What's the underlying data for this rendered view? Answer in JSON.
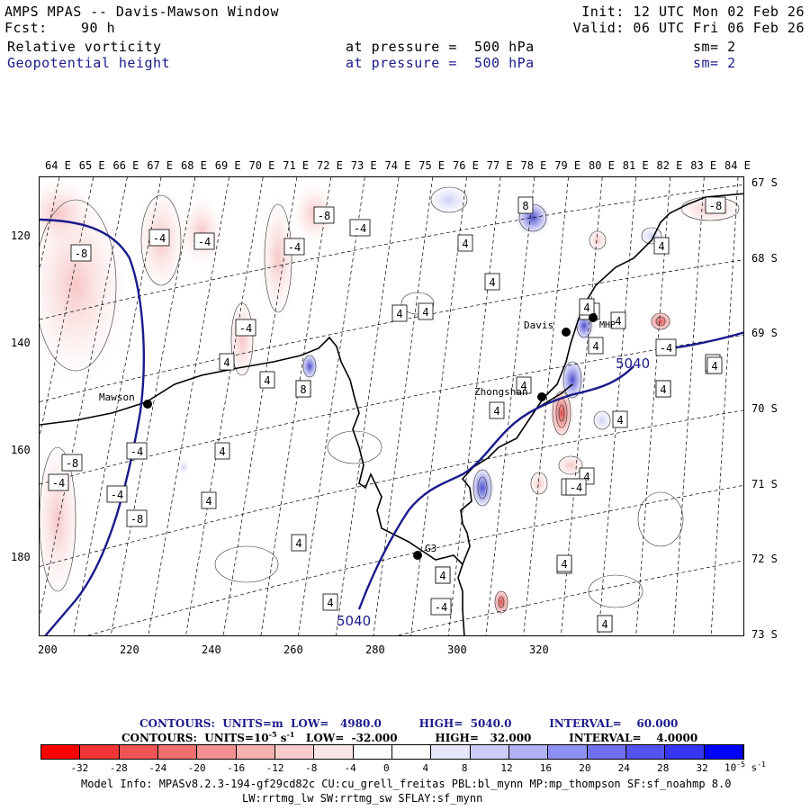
{
  "header": {
    "title": "AMPS MPAS -- Davis-Mawson Window",
    "fcst_label": "Fcst:",
    "fcst_value": "90 h",
    "init": "Init: 12 UTC Mon 02 Feb 26",
    "valid": "Valid: 06 UTC Fri 06 Feb 26",
    "field1_name": "Relative vorticity",
    "field1_level": "at pressure =  500 hPa",
    "field1_sm": "sm= 2",
    "field2_name": "Geopotential height",
    "field2_level": "at pressure =  500 hPa",
    "field2_sm": "sm= 2"
  },
  "map": {
    "top_longitudes": [
      "64 E",
      "65 E",
      "66 E",
      "67 E",
      "68 E",
      "69 E",
      "70 E",
      "71 E",
      "72 E",
      "73 E",
      "74 E",
      "75 E",
      "76 E",
      "77 E",
      "78 E",
      "79 E",
      "80 E",
      "81 E",
      "82 E",
      "83 E",
      "84 E"
    ],
    "right_latitudes": [
      "67 S",
      "68 S",
      "69 S",
      "70 S",
      "71 S",
      "72 S",
      "73 S"
    ],
    "x_ticks": [
      "200",
      "220",
      "240",
      "260",
      "280",
      "300",
      "320"
    ],
    "y_ticks": [
      "120",
      "140",
      "160",
      "180"
    ],
    "stations": [
      {
        "name": "Mawson",
        "icon": "station-dot-icon"
      },
      {
        "name": "Davis",
        "icon": "station-dot-icon"
      },
      {
        "name": "Zhongshan",
        "icon": "station-dot-icon"
      },
      {
        "name": "G3",
        "icon": "station-dot-icon"
      },
      {
        "name": "MHP",
        "icon": "station-dot-icon"
      }
    ],
    "height_labels": [
      "5040",
      "5040"
    ],
    "vorticity_labels": [
      "-8",
      "-4",
      "-4",
      "-4",
      "-8",
      "-4",
      "-8",
      "-4",
      "-4",
      "-8",
      "-4",
      "4",
      "4",
      "4",
      "4",
      "8",
      "4",
      "4",
      "-4",
      "4",
      "4",
      "4",
      "4",
      "4",
      "-4",
      "-4",
      "4",
      "4",
      "4",
      "-4",
      "4",
      "4",
      "4",
      "4",
      "4",
      "8",
      "4",
      "8",
      "4",
      "-4",
      "4",
      "4",
      "4",
      "-4",
      "4",
      "4",
      "-8",
      "4",
      "4",
      "4"
    ],
    "colors": {
      "height_contour": "#1a1a8c",
      "coast": "#000000",
      "positive_fill": "#3838c8",
      "negative_fill": "#d83a3a"
    }
  },
  "colorbar": {
    "ticks": [
      "-32",
      "-28",
      "-24",
      "-20",
      "-16",
      "-12",
      "-8",
      "-4",
      "0",
      "4",
      "8",
      "12",
      "16",
      "20",
      "24",
      "28",
      "32"
    ],
    "units": "10",
    "units_exp": "-5",
    "units_suffix": " s",
    "units_suffix_exp": "-1",
    "colors": [
      "#ff0000",
      "#f23535",
      "#ef5353",
      "#f07070",
      "#f39090",
      "#f5b0b0",
      "#f8cccc",
      "#fbe6e6",
      "#ffffff",
      "#ffffff",
      "#e6e6fb",
      "#ccccf8",
      "#b0b0f5",
      "#9090f3",
      "#7070f0",
      "#5353ef",
      "#3535f2",
      "#0000ff"
    ]
  },
  "contour_info": {
    "line1": "CONTOURS:  UNITS=m  LOW=   4980.0          HIGH=  5040.0          INTERVAL=    60.000",
    "line2": "CONTOURS:  UNITS=10",
    "line2_exp": "-5",
    "line2_s": " s",
    "line2_s_exp": "-1",
    "line2_rest": "   LOW=  -32.000          HIGH=   32.000          INTERVAL=    4.0000"
  },
  "footer": {
    "line1": "Model Info: MPASv8.2.3-194-gf29cd82c CU:cu_grell_freitas PBL:bl_mynn MP:mp_thompson SF:sf_noahmp 8.0",
    "line2": "LW:rrtmg_lw SW:rrtmg_sw SFLAY:sf_mynn"
  }
}
